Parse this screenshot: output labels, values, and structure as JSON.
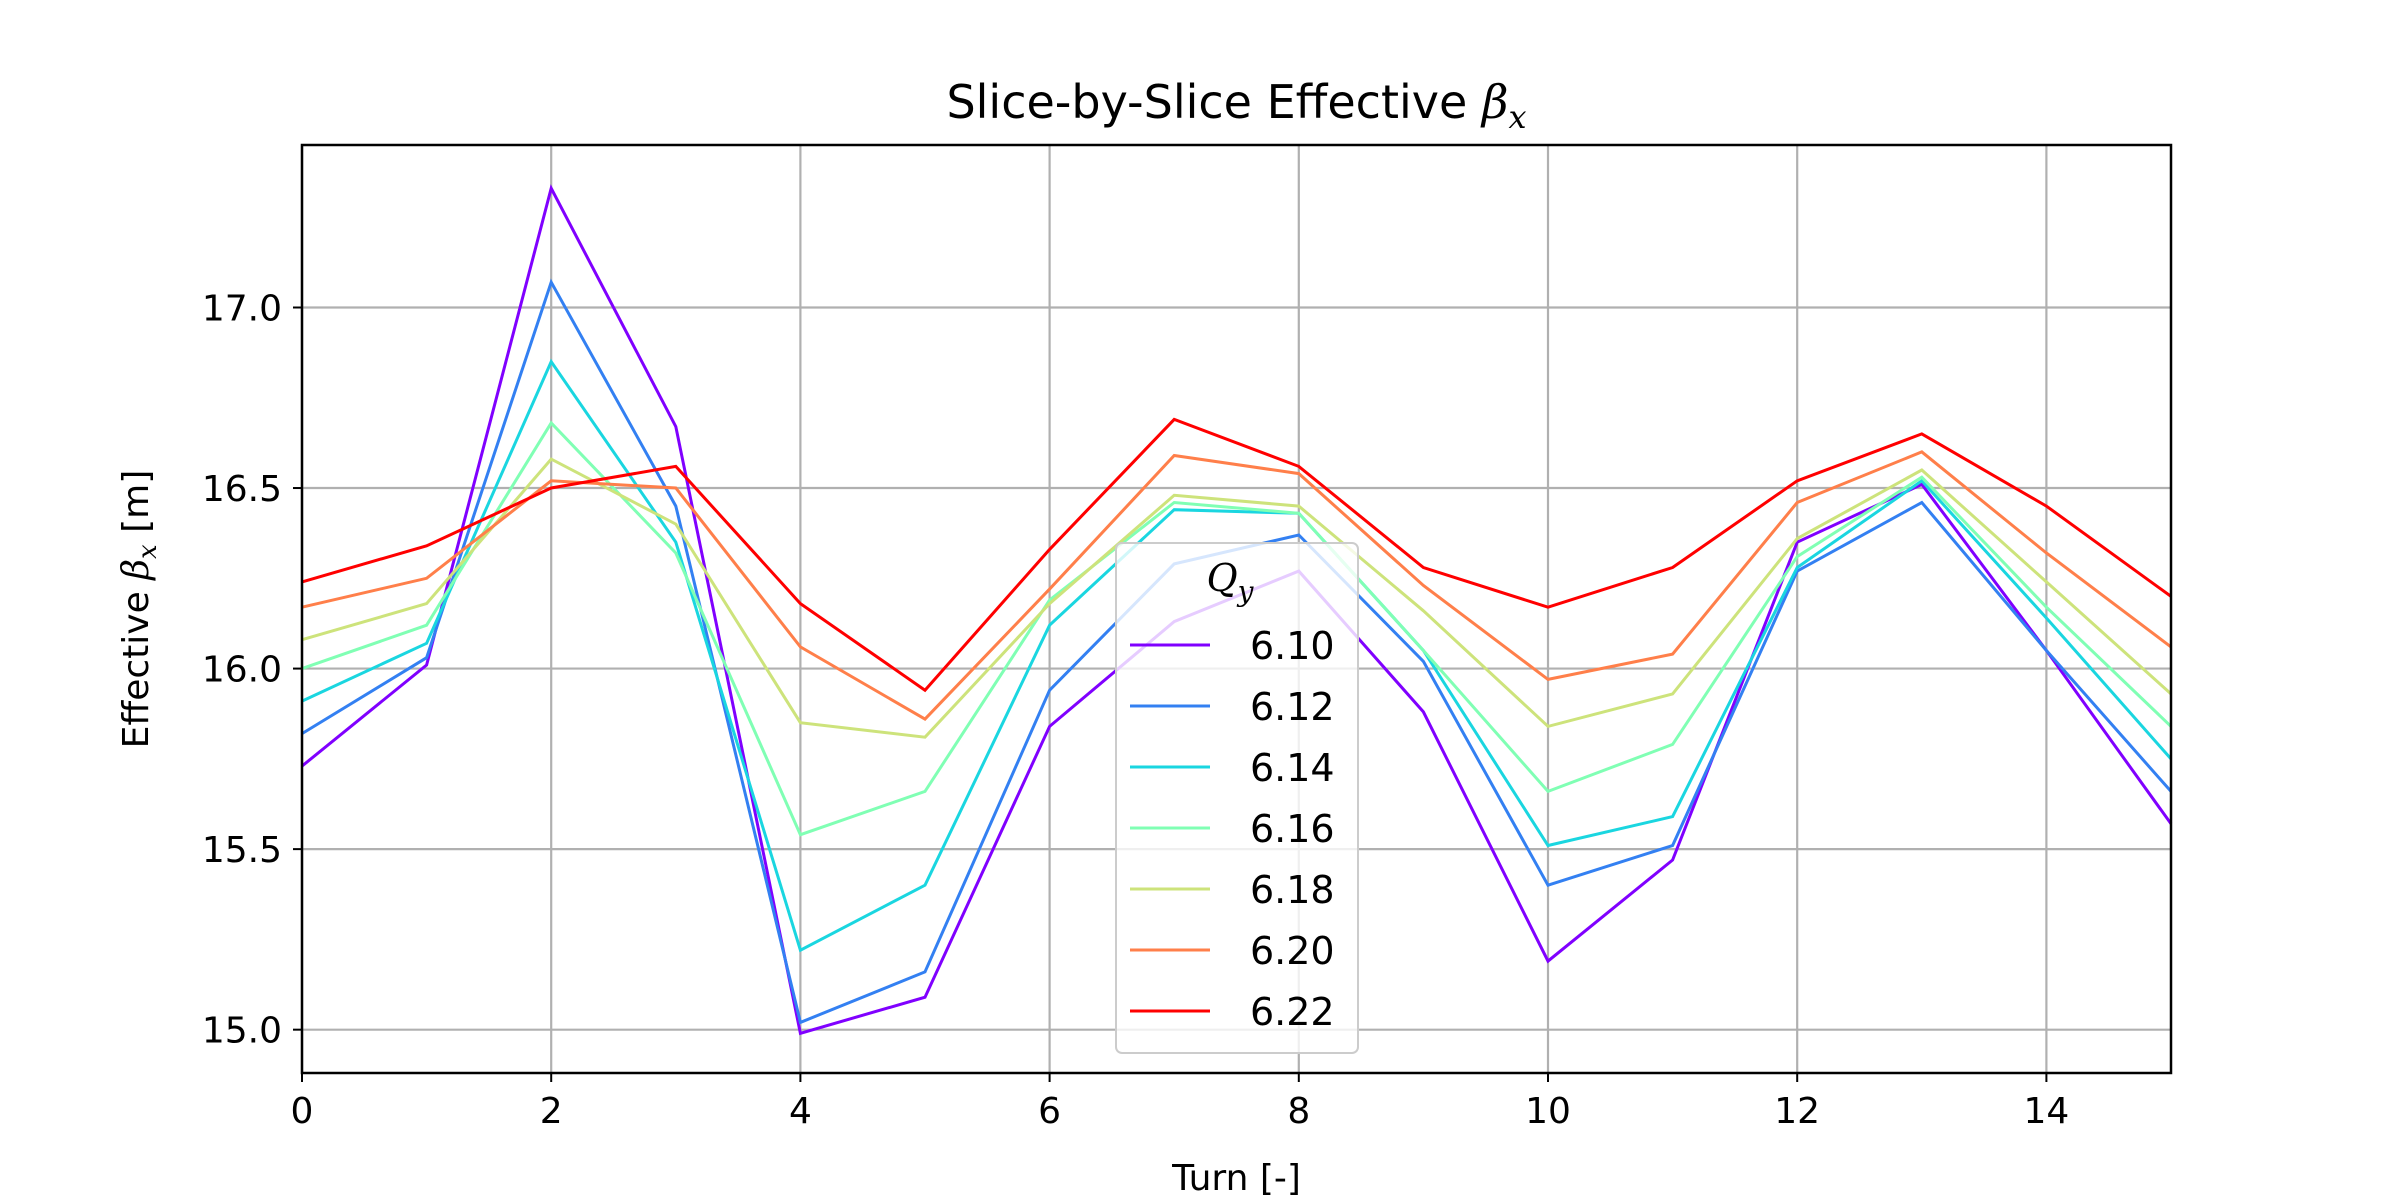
{
  "chart_data": {
    "type": "line",
    "title_prefix": "Slice-by-Slice Effective ",
    "title_symbol": "β",
    "title_subscript": "x",
    "xlabel": "Turn [-]",
    "ylabel_prefix": "Effective ",
    "ylabel_symbol": "β",
    "ylabel_subscript": "x",
    "ylabel_suffix": " [m]",
    "xlim": [
      0,
      15
    ],
    "ylim": [
      14.88,
      17.45
    ],
    "xticks": [
      0,
      2,
      4,
      6,
      8,
      10,
      12,
      14
    ],
    "yticks": [
      15.0,
      15.5,
      16.0,
      16.5,
      17.0
    ],
    "ytick_labels": [
      "15.0",
      "15.5",
      "16.0",
      "16.5",
      "17.0"
    ],
    "grid": true,
    "legend_placement": "bottom-center",
    "legend_title_symbol": "Q",
    "legend_title_subscript": "y",
    "x": [
      0,
      1,
      2,
      3,
      4,
      5,
      6,
      7,
      8,
      9,
      10,
      11,
      12,
      13,
      14,
      15
    ],
    "series": [
      {
        "name": "6.10",
        "color": "#8000ff",
        "values": [
          15.73,
          16.01,
          17.33,
          16.67,
          14.99,
          15.09,
          15.84,
          16.13,
          16.27,
          15.88,
          15.19,
          15.47,
          16.35,
          16.51,
          16.05,
          15.57
        ]
      },
      {
        "name": "6.12",
        "color": "#3380f2",
        "values": [
          15.82,
          16.03,
          17.07,
          16.45,
          15.02,
          15.16,
          15.94,
          16.29,
          16.37,
          16.02,
          15.4,
          15.51,
          16.27,
          16.46,
          16.05,
          15.66
        ]
      },
      {
        "name": "6.14",
        "color": "#1ad6e0",
        "values": [
          15.91,
          16.07,
          16.85,
          16.35,
          15.22,
          15.4,
          16.12,
          16.44,
          16.43,
          16.05,
          15.51,
          15.59,
          16.28,
          16.52,
          16.14,
          15.75
        ]
      },
      {
        "name": "6.16",
        "color": "#80ffb4",
        "values": [
          16.0,
          16.12,
          16.68,
          16.32,
          15.54,
          15.66,
          16.19,
          16.46,
          16.43,
          16.05,
          15.66,
          15.79,
          16.31,
          16.53,
          16.17,
          15.84
        ]
      },
      {
        "name": "6.18",
        "color": "#cde37b",
        "values": [
          16.08,
          16.18,
          16.58,
          16.4,
          15.85,
          15.81,
          16.18,
          16.48,
          16.45,
          16.16,
          15.84,
          15.93,
          16.36,
          16.55,
          16.24,
          15.93
        ]
      },
      {
        "name": "6.20",
        "color": "#ff7f4a",
        "values": [
          16.17,
          16.25,
          16.52,
          16.5,
          16.06,
          15.86,
          16.22,
          16.59,
          16.54,
          16.23,
          15.97,
          16.04,
          16.46,
          16.6,
          16.32,
          16.06
        ]
      },
      {
        "name": "6.22",
        "color": "#ff0000",
        "values": [
          16.24,
          16.34,
          16.5,
          16.56,
          16.18,
          15.94,
          16.33,
          16.69,
          16.56,
          16.28,
          16.17,
          16.28,
          16.52,
          16.65,
          16.45,
          16.2
        ]
      }
    ]
  }
}
